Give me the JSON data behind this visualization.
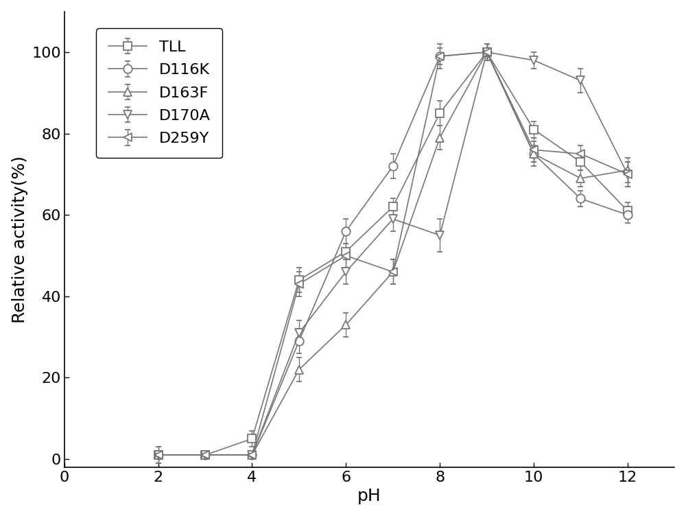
{
  "x": [
    2,
    3,
    4,
    5,
    6,
    7,
    8,
    9,
    10,
    11,
    12
  ],
  "series": {
    "TLL": {
      "y": [
        1,
        1,
        5,
        44,
        51,
        62,
        85,
        100,
        81,
        73,
        61
      ],
      "yerr": [
        2,
        1,
        2,
        3,
        2,
        2,
        3,
        2,
        2,
        2,
        2
      ],
      "marker": "s",
      "label": "TLL"
    },
    "D116K": {
      "y": [
        1,
        1,
        1,
        29,
        56,
        72,
        99,
        100,
        75,
        64,
        60
      ],
      "yerr": [
        2,
        1,
        1,
        3,
        3,
        3,
        2,
        2,
        2,
        2,
        2
      ],
      "marker": "o",
      "label": "D116K"
    },
    "D163F": {
      "y": [
        1,
        1,
        1,
        22,
        33,
        46,
        79,
        100,
        75,
        69,
        71
      ],
      "yerr": [
        1,
        1,
        1,
        3,
        3,
        3,
        3,
        2,
        3,
        2,
        3
      ],
      "marker": "^",
      "label": "D163F"
    },
    "D170A": {
      "y": [
        1,
        1,
        1,
        31,
        46,
        59,
        55,
        100,
        98,
        93,
        70
      ],
      "yerr": [
        1,
        1,
        1,
        3,
        3,
        3,
        4,
        2,
        2,
        3,
        3
      ],
      "marker": "v",
      "label": "D170A"
    },
    "D259Y": {
      "y": [
        1,
        1,
        1,
        43,
        50,
        46,
        99,
        100,
        76,
        75,
        70
      ],
      "yerr": [
        1,
        1,
        1,
        3,
        3,
        3,
        3,
        2,
        3,
        2,
        3
      ],
      "marker": "<",
      "label": "D259Y"
    }
  },
  "line_color": "#777777",
  "xlabel": "pH",
  "ylabel": "Relative activity(%)",
  "xlim": [
    0,
    13
  ],
  "ylim": [
    -2,
    110
  ],
  "xticks": [
    0,
    2,
    4,
    6,
    8,
    10,
    12
  ],
  "yticks": [
    0,
    20,
    40,
    60,
    80,
    100
  ],
  "background_color": "#ffffff",
  "legend_fontsize": 16,
  "axis_fontsize": 18,
  "tick_fontsize": 16,
  "linewidth": 1.2,
  "markersize": 9
}
